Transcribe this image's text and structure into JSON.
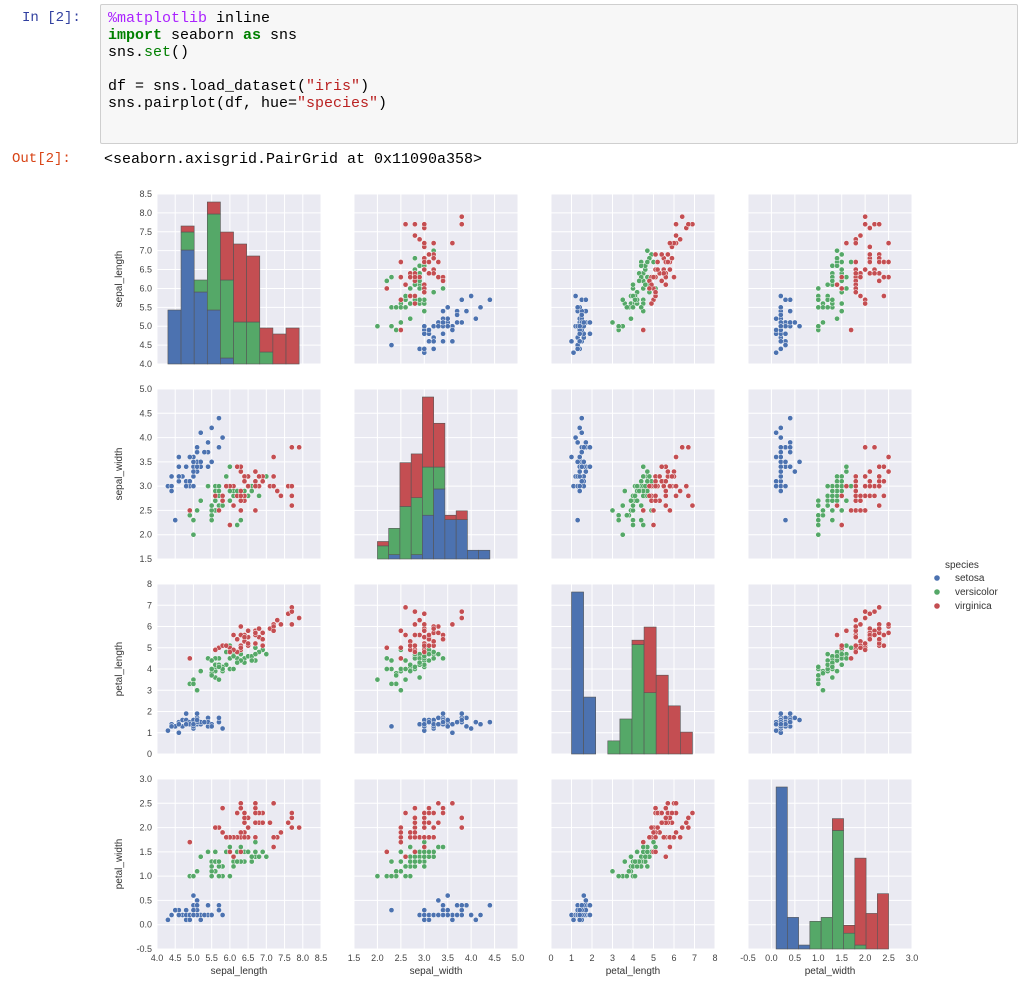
{
  "cell": {
    "input_prompt": "In [2]:",
    "output_prompt": "Out[2]:",
    "code_lines": [
      [
        {
          "t": "%matplotlib",
          "c": "magic"
        },
        {
          "t": " inline",
          "c": ""
        }
      ],
      [
        {
          "t": "import",
          "c": "kw"
        },
        {
          "t": " seaborn ",
          "c": ""
        },
        {
          "t": "as",
          "c": "kw"
        },
        {
          "t": " sns",
          "c": ""
        }
      ],
      [
        {
          "t": "sns.",
          "c": ""
        },
        {
          "t": "set",
          "c": "call"
        },
        {
          "t": "()",
          "c": ""
        }
      ],
      [],
      [
        {
          "t": "df = sns.load_dataset(",
          "c": ""
        },
        {
          "t": "\"iris\"",
          "c": "str"
        },
        {
          "t": ")",
          "c": ""
        }
      ],
      [
        {
          "t": "sns.pairplot(df, hue=",
          "c": ""
        },
        {
          "t": "\"species\"",
          "c": "str"
        },
        {
          "t": ")",
          "c": ""
        }
      ]
    ],
    "output_text": "<seaborn.axisgrid.PairGrid at 0x11090a358>"
  },
  "chart_data": {
    "type": "scatter",
    "variables": [
      "sepal_length",
      "sepal_width",
      "petal_length",
      "petal_width"
    ],
    "axes": {
      "sepal_length": {
        "lim": [
          4.0,
          8.5
        ],
        "ticks": [
          "4.0",
          "4.5",
          "5.0",
          "5.5",
          "6.0",
          "6.5",
          "7.0",
          "7.5",
          "8.0",
          "8.5"
        ]
      },
      "sepal_width": {
        "lim": [
          1.5,
          5.0
        ],
        "ticks": [
          "1.5",
          "2.0",
          "2.5",
          "3.0",
          "3.5",
          "4.0",
          "4.5",
          "5.0"
        ]
      },
      "petal_length": {
        "lim": [
          0,
          8
        ],
        "ticks": [
          "0",
          "1",
          "2",
          "3",
          "4",
          "5",
          "6",
          "7",
          "8"
        ]
      },
      "petal_width": {
        "lim": [
          -0.5,
          3.0
        ],
        "ticks": [
          "-0.5",
          "0.0",
          "0.5",
          "1.0",
          "1.5",
          "2.0",
          "2.5",
          "3.0"
        ]
      }
    },
    "legend": {
      "title": "species",
      "position": "right"
    },
    "series": [
      {
        "name": "setosa",
        "color": "#4c72b0",
        "points": [
          [
            5.1,
            3.5,
            1.4,
            0.2
          ],
          [
            4.9,
            3.0,
            1.4,
            0.2
          ],
          [
            4.7,
            3.2,
            1.3,
            0.2
          ],
          [
            4.6,
            3.1,
            1.5,
            0.2
          ],
          [
            5.0,
            3.6,
            1.4,
            0.2
          ],
          [
            5.4,
            3.9,
            1.7,
            0.4
          ],
          [
            4.6,
            3.4,
            1.4,
            0.3
          ],
          [
            5.0,
            3.4,
            1.5,
            0.2
          ],
          [
            4.4,
            2.9,
            1.4,
            0.2
          ],
          [
            4.9,
            3.1,
            1.5,
            0.1
          ],
          [
            5.4,
            3.7,
            1.5,
            0.2
          ],
          [
            4.8,
            3.4,
            1.6,
            0.2
          ],
          [
            4.8,
            3.0,
            1.4,
            0.1
          ],
          [
            4.3,
            3.0,
            1.1,
            0.1
          ],
          [
            5.8,
            4.0,
            1.2,
            0.2
          ],
          [
            5.7,
            4.4,
            1.5,
            0.4
          ],
          [
            5.4,
            3.9,
            1.3,
            0.4
          ],
          [
            5.1,
            3.5,
            1.4,
            0.3
          ],
          [
            5.7,
            3.8,
            1.7,
            0.3
          ],
          [
            5.1,
            3.8,
            1.5,
            0.3
          ],
          [
            5.4,
            3.4,
            1.7,
            0.2
          ],
          [
            5.1,
            3.7,
            1.5,
            0.4
          ],
          [
            4.6,
            3.6,
            1.0,
            0.2
          ],
          [
            5.1,
            3.3,
            1.7,
            0.5
          ],
          [
            4.8,
            3.4,
            1.9,
            0.2
          ],
          [
            5.0,
            3.0,
            1.6,
            0.2
          ],
          [
            5.0,
            3.4,
            1.6,
            0.4
          ],
          [
            5.2,
            3.5,
            1.5,
            0.2
          ],
          [
            5.2,
            3.4,
            1.4,
            0.2
          ],
          [
            4.7,
            3.2,
            1.6,
            0.2
          ],
          [
            4.8,
            3.1,
            1.6,
            0.2
          ],
          [
            5.4,
            3.4,
            1.5,
            0.4
          ],
          [
            5.2,
            4.1,
            1.5,
            0.1
          ],
          [
            5.5,
            4.2,
            1.4,
            0.2
          ],
          [
            4.9,
            3.1,
            1.5,
            0.2
          ],
          [
            5.0,
            3.2,
            1.2,
            0.2
          ],
          [
            5.5,
            3.5,
            1.3,
            0.2
          ],
          [
            4.9,
            3.6,
            1.4,
            0.1
          ],
          [
            4.4,
            3.0,
            1.3,
            0.2
          ],
          [
            5.1,
            3.4,
            1.5,
            0.2
          ],
          [
            5.0,
            3.5,
            1.3,
            0.3
          ],
          [
            4.5,
            2.3,
            1.3,
            0.3
          ],
          [
            4.4,
            3.2,
            1.3,
            0.2
          ],
          [
            5.0,
            3.5,
            1.6,
            0.6
          ],
          [
            5.1,
            3.8,
            1.9,
            0.4
          ],
          [
            4.8,
            3.0,
            1.4,
            0.3
          ],
          [
            5.1,
            3.8,
            1.6,
            0.2
          ],
          [
            4.6,
            3.2,
            1.4,
            0.2
          ],
          [
            5.3,
            3.7,
            1.5,
            0.2
          ],
          [
            5.0,
            3.3,
            1.4,
            0.2
          ]
        ]
      },
      {
        "name": "versicolor",
        "color": "#55a868",
        "points": [
          [
            7.0,
            3.2,
            4.7,
            1.4
          ],
          [
            6.4,
            3.2,
            4.5,
            1.5
          ],
          [
            6.9,
            3.1,
            4.9,
            1.5
          ],
          [
            5.5,
            2.3,
            4.0,
            1.3
          ],
          [
            6.5,
            2.8,
            4.6,
            1.5
          ],
          [
            5.7,
            2.8,
            4.5,
            1.3
          ],
          [
            6.3,
            3.3,
            4.7,
            1.6
          ],
          [
            4.9,
            2.4,
            3.3,
            1.0
          ],
          [
            6.6,
            2.9,
            4.6,
            1.3
          ],
          [
            5.2,
            2.7,
            3.9,
            1.4
          ],
          [
            5.0,
            2.0,
            3.5,
            1.0
          ],
          [
            5.9,
            3.0,
            4.2,
            1.5
          ],
          [
            6.0,
            2.2,
            4.0,
            1.0
          ],
          [
            6.1,
            2.9,
            4.7,
            1.4
          ],
          [
            5.6,
            2.9,
            3.6,
            1.3
          ],
          [
            6.7,
            3.1,
            4.4,
            1.4
          ],
          [
            5.6,
            3.0,
            4.5,
            1.5
          ],
          [
            5.8,
            2.7,
            4.1,
            1.0
          ],
          [
            6.2,
            2.2,
            4.5,
            1.5
          ],
          [
            5.6,
            2.5,
            3.9,
            1.1
          ],
          [
            5.9,
            3.2,
            4.8,
            1.8
          ],
          [
            6.1,
            2.8,
            4.0,
            1.3
          ],
          [
            6.3,
            2.5,
            4.9,
            1.5
          ],
          [
            6.1,
            2.8,
            4.7,
            1.2
          ],
          [
            6.4,
            2.9,
            4.3,
            1.3
          ],
          [
            6.6,
            3.0,
            4.4,
            1.4
          ],
          [
            6.8,
            2.8,
            4.8,
            1.4
          ],
          [
            6.7,
            3.0,
            5.0,
            1.7
          ],
          [
            6.0,
            2.9,
            4.5,
            1.5
          ],
          [
            5.7,
            2.6,
            3.5,
            1.0
          ],
          [
            5.5,
            2.4,
            3.8,
            1.1
          ],
          [
            5.5,
            2.4,
            3.7,
            1.0
          ],
          [
            5.8,
            2.7,
            3.9,
            1.2
          ],
          [
            6.0,
            2.7,
            5.1,
            1.6
          ],
          [
            5.4,
            3.0,
            4.5,
            1.5
          ],
          [
            6.0,
            3.4,
            4.5,
            1.6
          ],
          [
            6.7,
            3.1,
            4.7,
            1.5
          ],
          [
            6.3,
            2.3,
            4.4,
            1.3
          ],
          [
            5.6,
            3.0,
            4.1,
            1.3
          ],
          [
            5.5,
            2.5,
            4.0,
            1.3
          ],
          [
            5.5,
            2.6,
            4.4,
            1.2
          ],
          [
            6.1,
            3.0,
            4.6,
            1.4
          ],
          [
            5.8,
            2.6,
            4.0,
            1.2
          ],
          [
            5.0,
            2.3,
            3.3,
            1.0
          ],
          [
            5.6,
            2.7,
            4.2,
            1.3
          ],
          [
            5.7,
            3.0,
            4.2,
            1.2
          ],
          [
            5.7,
            2.9,
            4.2,
            1.3
          ],
          [
            6.2,
            2.9,
            4.3,
            1.3
          ],
          [
            5.1,
            2.5,
            3.0,
            1.1
          ],
          [
            5.7,
            2.8,
            4.1,
            1.3
          ]
        ]
      },
      {
        "name": "virginica",
        "color": "#c44e52",
        "points": [
          [
            6.3,
            3.3,
            6.0,
            2.5
          ],
          [
            5.8,
            2.7,
            5.1,
            1.9
          ],
          [
            7.1,
            3.0,
            5.9,
            2.1
          ],
          [
            6.3,
            2.9,
            5.6,
            1.8
          ],
          [
            6.5,
            3.0,
            5.8,
            2.2
          ],
          [
            7.6,
            3.0,
            6.6,
            2.1
          ],
          [
            4.9,
            2.5,
            4.5,
            1.7
          ],
          [
            7.3,
            2.9,
            6.3,
            1.8
          ],
          [
            6.7,
            2.5,
            5.8,
            1.8
          ],
          [
            7.2,
            3.6,
            6.1,
            2.5
          ],
          [
            6.5,
            3.2,
            5.1,
            2.0
          ],
          [
            6.4,
            2.7,
            5.3,
            1.9
          ],
          [
            6.8,
            3.0,
            5.5,
            2.1
          ],
          [
            5.7,
            2.5,
            5.0,
            2.0
          ],
          [
            5.8,
            2.8,
            5.1,
            2.4
          ],
          [
            6.4,
            3.2,
            5.3,
            2.3
          ],
          [
            6.5,
            3.0,
            5.5,
            1.8
          ],
          [
            7.7,
            3.8,
            6.7,
            2.2
          ],
          [
            7.7,
            2.6,
            6.9,
            2.3
          ],
          [
            6.0,
            2.2,
            5.0,
            1.5
          ],
          [
            6.9,
            3.2,
            5.7,
            2.3
          ],
          [
            5.6,
            2.8,
            4.9,
            2.0
          ],
          [
            7.7,
            2.8,
            6.7,
            2.0
          ],
          [
            6.3,
            2.7,
            4.9,
            1.8
          ],
          [
            6.7,
            3.3,
            5.7,
            2.1
          ],
          [
            7.2,
            3.2,
            6.0,
            1.8
          ],
          [
            6.2,
            2.8,
            4.8,
            1.8
          ],
          [
            6.1,
            3.0,
            4.9,
            1.8
          ],
          [
            6.4,
            2.8,
            5.6,
            2.1
          ],
          [
            7.2,
            3.0,
            5.8,
            1.6
          ],
          [
            7.4,
            2.8,
            6.1,
            1.9
          ],
          [
            7.9,
            3.8,
            6.4,
            2.0
          ],
          [
            6.4,
            2.8,
            5.6,
            2.2
          ],
          [
            6.3,
            2.8,
            5.1,
            1.5
          ],
          [
            6.1,
            2.6,
            5.6,
            1.4
          ],
          [
            7.7,
            3.0,
            6.1,
            2.3
          ],
          [
            6.3,
            3.4,
            5.6,
            2.4
          ],
          [
            6.4,
            3.1,
            5.5,
            1.8
          ],
          [
            6.0,
            3.0,
            4.8,
            1.8
          ],
          [
            6.9,
            3.1,
            5.4,
            2.1
          ],
          [
            6.7,
            3.1,
            5.6,
            2.4
          ],
          [
            6.9,
            3.1,
            5.1,
            2.3
          ],
          [
            5.8,
            2.7,
            5.1,
            1.9
          ],
          [
            6.8,
            3.2,
            5.9,
            2.3
          ],
          [
            6.7,
            3.3,
            5.7,
            2.5
          ],
          [
            6.7,
            3.0,
            5.2,
            2.3
          ],
          [
            6.3,
            2.5,
            5.0,
            1.9
          ],
          [
            6.5,
            3.0,
            5.2,
            2.0
          ],
          [
            6.2,
            3.4,
            5.4,
            2.3
          ],
          [
            5.9,
            3.0,
            5.1,
            1.8
          ]
        ]
      }
    ]
  }
}
